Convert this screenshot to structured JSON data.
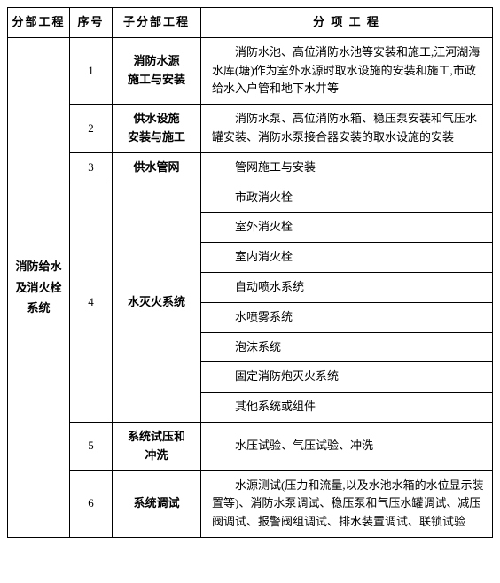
{
  "headers": {
    "h1": "分部工程",
    "h2": "序号",
    "h3": "子分部工程",
    "h4": "分 项 工 程"
  },
  "mainCategory": "消防给水及消火栓系统",
  "rows": {
    "r1": {
      "num": "1",
      "sub": "消防水源施工与安装",
      "detail": "消防水池、高位消防水池等安装和施工,江河湖海水库(塘)作为室外水源时取水设施的安装和施工,市政给水入户管和地下水井等"
    },
    "r2": {
      "num": "2",
      "sub": "供水设施安装与施工",
      "detail": "消防水泵、高位消防水箱、稳压泵安装和气压水罐安装、消防水泵接合器安装的取水设施的安装"
    },
    "r3": {
      "num": "3",
      "sub": "供水管网",
      "detail": "管网施工与安装"
    },
    "r4": {
      "num": "4",
      "sub": "水灭火系统",
      "items": {
        "i1": "市政消火栓",
        "i2": "室外消火栓",
        "i3": "室内消火栓",
        "i4": "自动喷水系统",
        "i5": "水喷雾系统",
        "i6": "泡沫系统",
        "i7": "固定消防炮灭火系统",
        "i8": "其他系统或组件"
      }
    },
    "r5": {
      "num": "5",
      "sub": "系统试压和冲洗",
      "detail": "水压试验、气压试验、冲洗"
    },
    "r6": {
      "num": "6",
      "sub": "系统调试",
      "detail": "水源测试(压力和流量,以及水池水箱的水位显示装置等)、消防水泵调试、稳压泵和气压水罐调试、减压阀调试、报警阀组调试、排水装置调试、联锁试验"
    }
  }
}
